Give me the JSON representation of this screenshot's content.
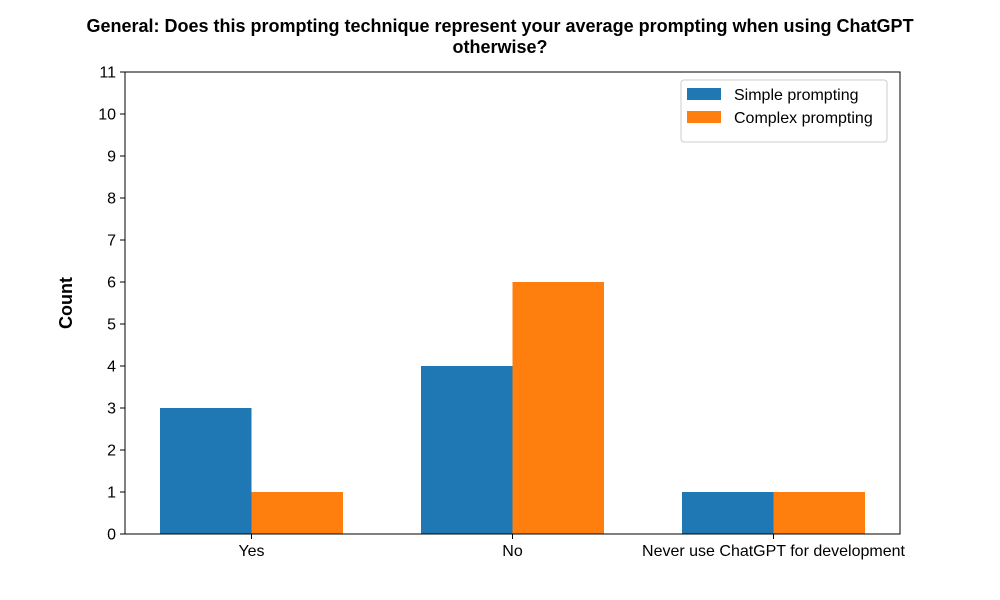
{
  "chart_data": {
    "type": "bar",
    "title_lines": [
      "General: Does this prompting technique represent your average prompting when using ChatGPT",
      "otherwise?"
    ],
    "xlabel": "",
    "ylabel": "Count",
    "ylim": [
      0,
      11
    ],
    "yticks": [
      "0",
      "1",
      "2",
      "3",
      "4",
      "5",
      "6",
      "7",
      "8",
      "9",
      "10",
      "11"
    ],
    "categories": [
      "Yes",
      "No",
      "Never use ChatGPT for development"
    ],
    "series": [
      {
        "name": "Simple prompting",
        "color": "#1f77b4",
        "values": [
          3,
          4,
          1
        ]
      },
      {
        "name": "Complex prompting",
        "color": "#ff7f0e",
        "values": [
          1,
          6,
          1
        ]
      }
    ],
    "legend": {
      "placement": "top-right"
    },
    "grid": false
  }
}
